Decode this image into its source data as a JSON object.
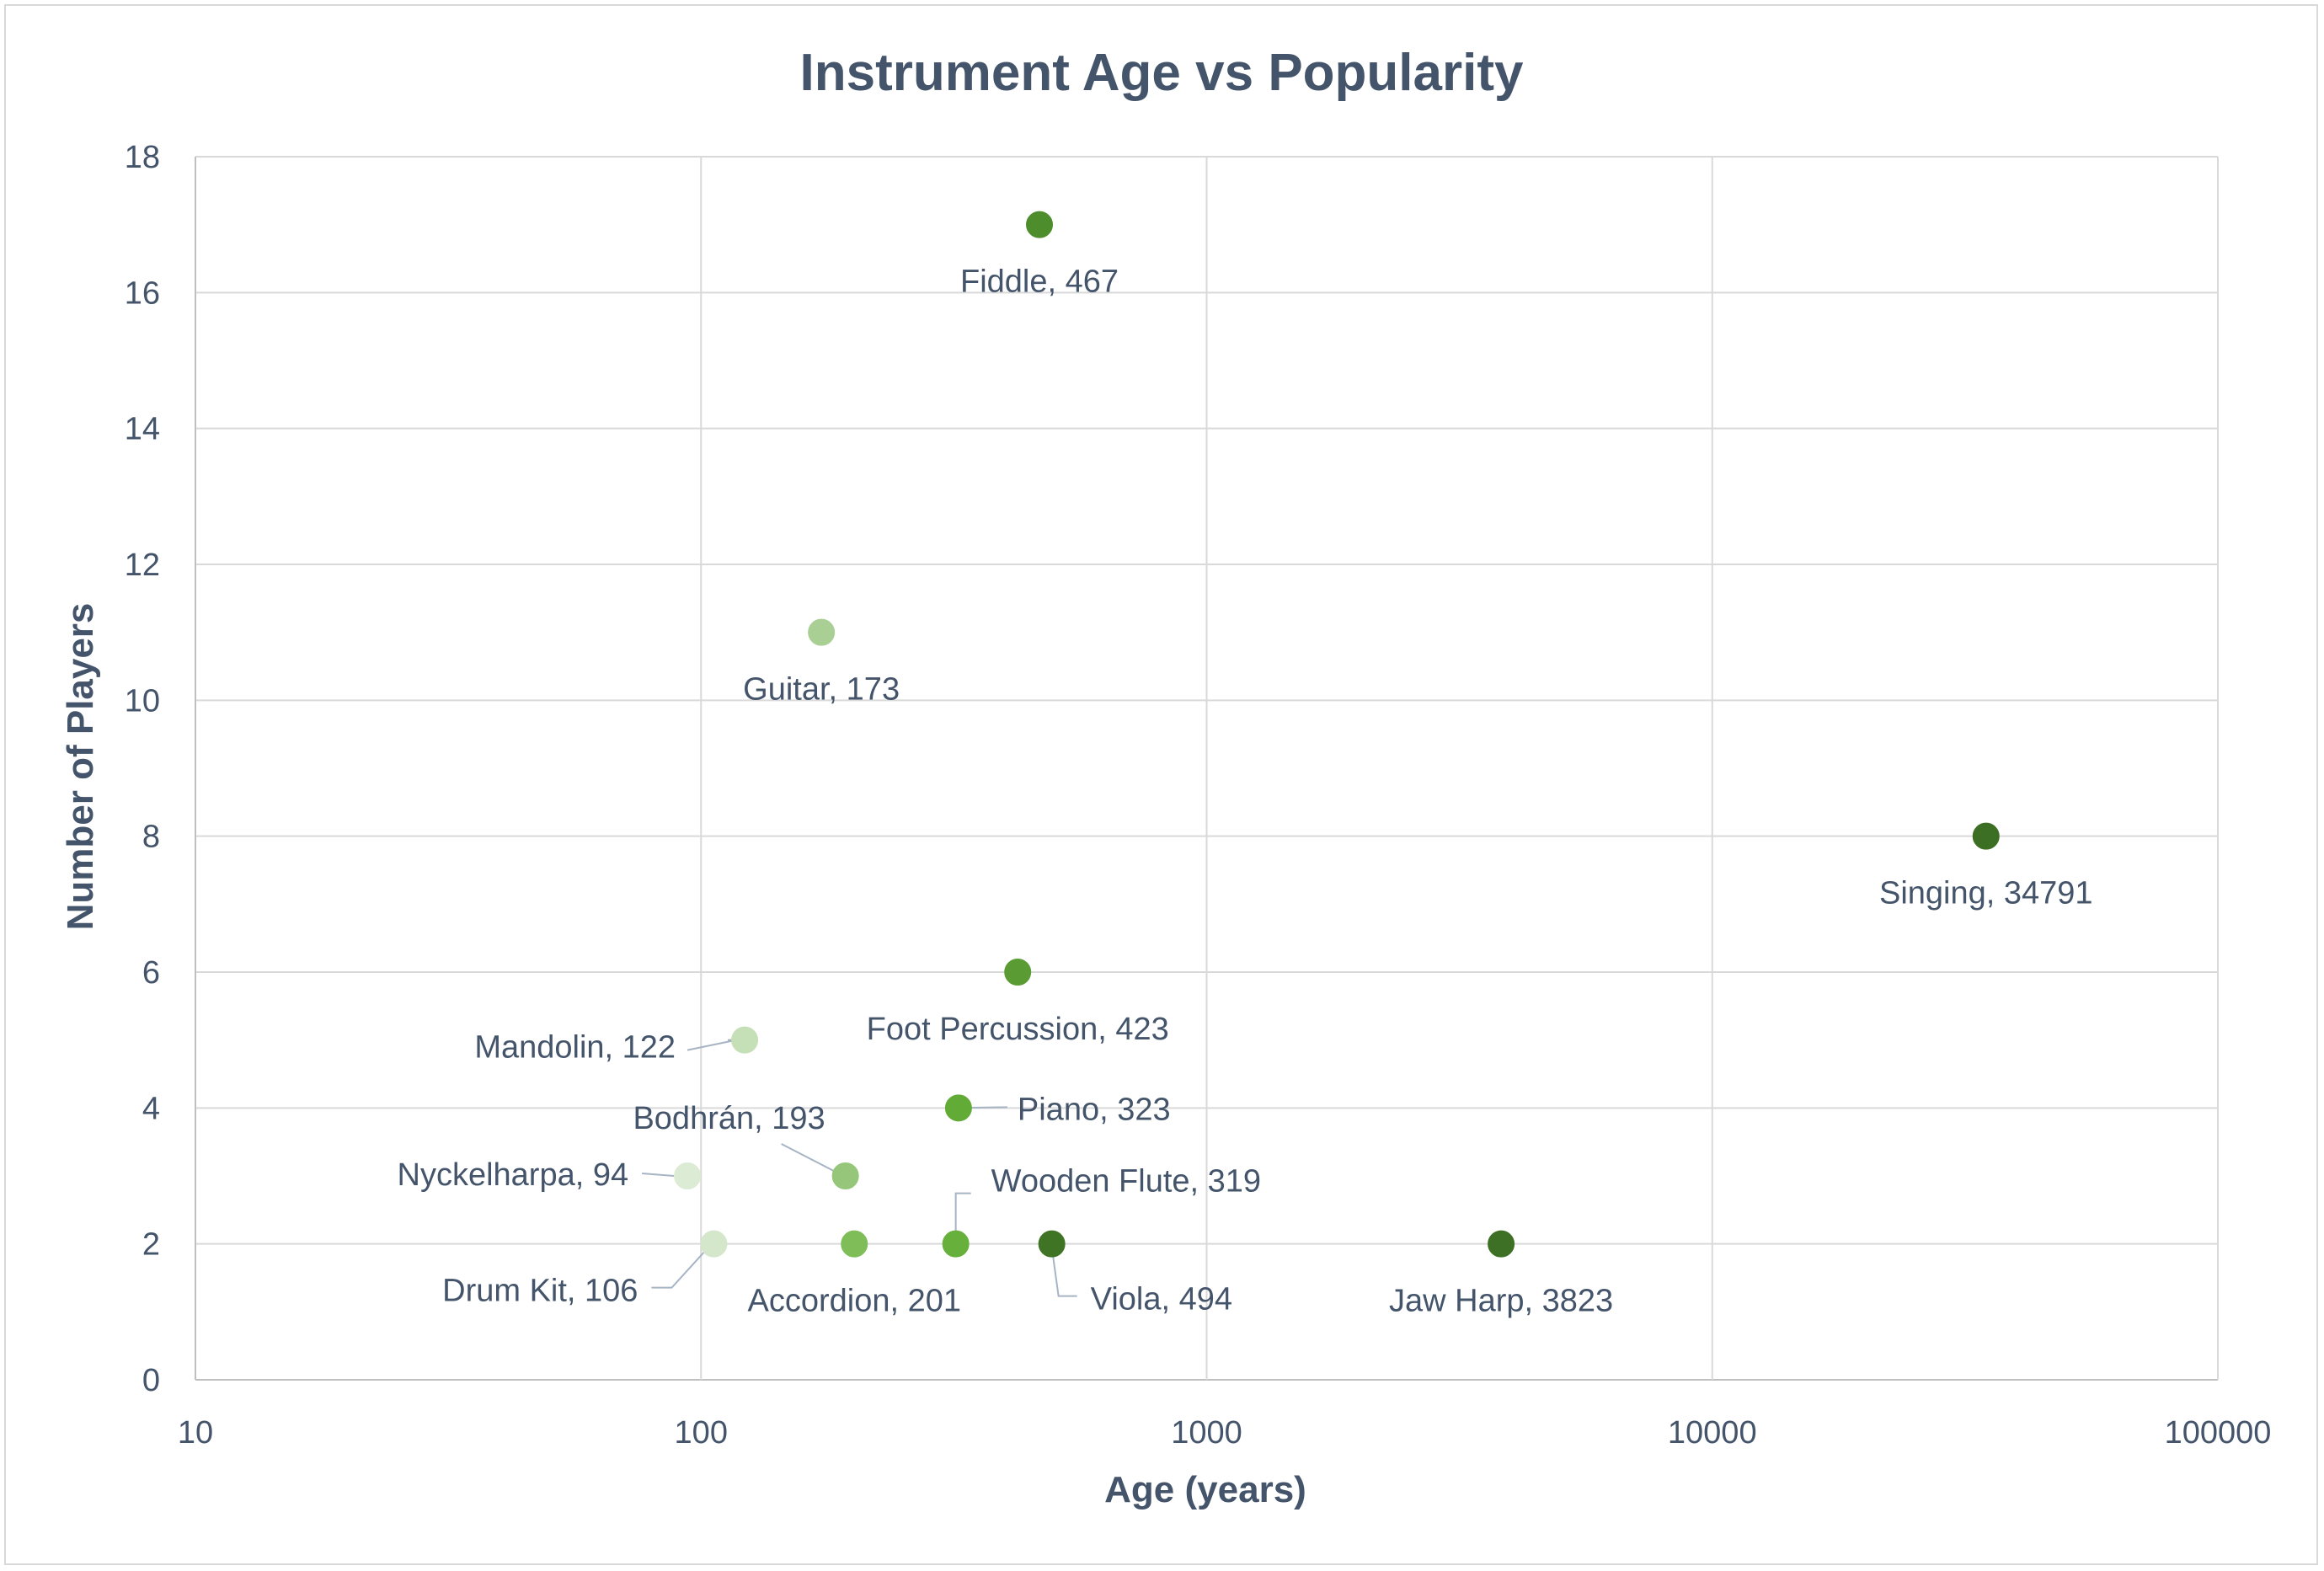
{
  "chart_data": {
    "type": "scatter",
    "title": "Instrument Age vs Popularity",
    "xlabel": "Age (years)",
    "ylabel": "Number of Players",
    "x_scale": "log",
    "xlim": [
      10,
      100000
    ],
    "ylim": [
      0,
      18
    ],
    "x_ticks": [
      "10",
      "100",
      "1000",
      "10000",
      "100000"
    ],
    "y_ticks": [
      "0",
      "2",
      "4",
      "6",
      "8",
      "10",
      "12",
      "14",
      "16",
      "18"
    ],
    "grid": true,
    "legend": "none",
    "colors": {
      "text": "#44546a",
      "grid": "#d9d9d9"
    },
    "points": [
      {
        "label": "Fiddle, 467",
        "x": 467,
        "y": 17,
        "color": "#4e8d2c"
      },
      {
        "label": "Guitar, 173",
        "x": 173,
        "y": 11,
        "color": "#a9cf95"
      },
      {
        "label": "Singing, 34791",
        "x": 34791,
        "y": 8,
        "color": "#3c6e23"
      },
      {
        "label": "Foot Percussion, 423",
        "x": 423,
        "y": 6,
        "color": "#5a9c33"
      },
      {
        "label": "Mandolin, 122",
        "x": 122,
        "y": 5,
        "color": "#c5dfb7"
      },
      {
        "label": "Piano, 323",
        "x": 323,
        "y": 4,
        "color": "#62ab37"
      },
      {
        "label": "Bodhrán, 193",
        "x": 193,
        "y": 3,
        "color": "#95c679"
      },
      {
        "label": "Nyckelharpa, 94",
        "x": 94,
        "y": 3,
        "color": "#dcebd3"
      },
      {
        "label": "Wooden Flute, 319",
        "x": 319,
        "y": 2,
        "color": "#66b03b"
      },
      {
        "label": "Drum Kit, 106",
        "x": 106,
        "y": 2,
        "color": "#d4e7ca"
      },
      {
        "label": "Accordion, 201",
        "x": 201,
        "y": 2,
        "color": "#7ebd58"
      },
      {
        "label": "Viola, 494",
        "x": 494,
        "y": 2,
        "color": "#3f7425"
      },
      {
        "label": "Jaw Harp, 3823",
        "x": 3823,
        "y": 2,
        "color": "#3d7024"
      }
    ]
  }
}
